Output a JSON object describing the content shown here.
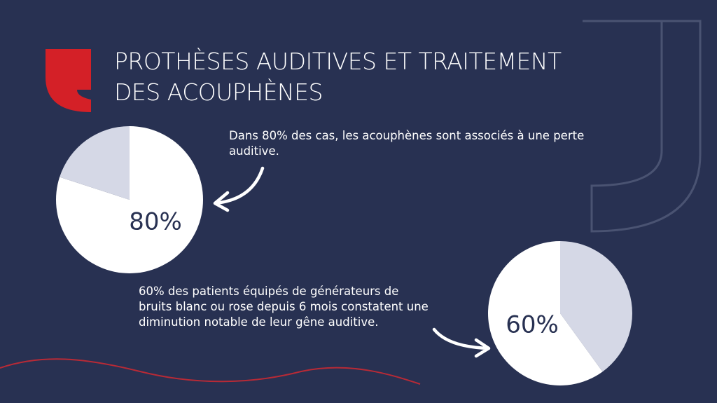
{
  "title": "PROTHÈSES AUDITIVES ET TRAITEMENT DES ACOUPHÈNES",
  "chart_data": [
    {
      "type": "pie",
      "caption": "Dans 80% des cas, les acouphènes sont associés à une perte auditive.",
      "values": [
        80,
        20
      ],
      "value_labels": [
        "80%",
        null
      ],
      "colors": [
        "#ffffff",
        "#d5d8e6"
      ]
    },
    {
      "type": "pie",
      "caption": "60% des patients équipés de générateurs de bruits blanc ou rose depuis 6 mois constatent une diminution notable de leur gêne auditive.",
      "values": [
        40,
        60
      ],
      "value_labels": [
        null,
        "60%"
      ],
      "colors": [
        "#d5d8e6",
        "#ffffff"
      ]
    }
  ]
}
